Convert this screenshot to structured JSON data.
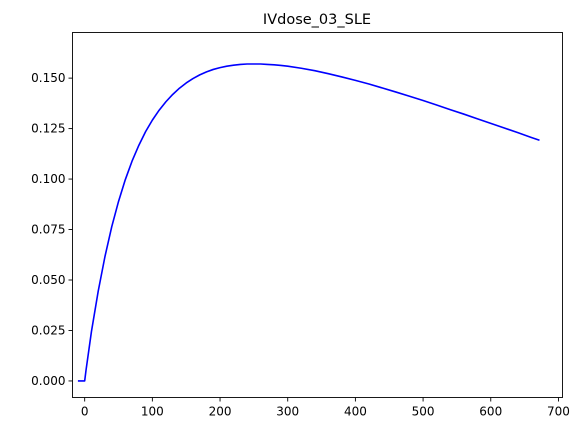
{
  "chart_data": {
    "type": "line",
    "title": "IVdose_03_SLE",
    "xlabel": "",
    "ylabel": "",
    "xlim": [
      -18,
      706
    ],
    "ylim": [
      -0.0082,
      0.1726
    ],
    "xticks": [
      0,
      100,
      200,
      300,
      400,
      500,
      600,
      700
    ],
    "xtick_labels": [
      "0",
      "100",
      "200",
      "300",
      "400",
      "500",
      "600",
      "700"
    ],
    "yticks": [
      0.0,
      0.025,
      0.05,
      0.075,
      0.1,
      0.125,
      0.15
    ],
    "ytick_labels": [
      "0.000",
      "0.025",
      "0.050",
      "0.075",
      "0.100",
      "0.125",
      "0.150"
    ],
    "grid": false,
    "series": [
      {
        "color": "#0000ff",
        "x": [
          -10,
          0,
          2,
          10,
          20,
          30,
          40,
          50,
          60,
          70,
          80,
          90,
          100,
          110,
          120,
          130,
          140,
          150,
          160,
          170,
          180,
          190,
          200,
          210,
          220,
          230,
          240,
          250,
          260,
          270,
          280,
          290,
          300,
          320,
          340,
          360,
          380,
          400,
          420,
          440,
          460,
          480,
          500,
          520,
          540,
          560,
          580,
          600,
          620,
          640,
          660,
          672
        ],
        "y": [
          0.0,
          0.0,
          0.0054,
          0.0245,
          0.0445,
          0.0617,
          0.0764,
          0.0889,
          0.0997,
          0.1089,
          0.1167,
          0.1235,
          0.1292,
          0.1341,
          0.1383,
          0.1419,
          0.145,
          0.1476,
          0.1498,
          0.1516,
          0.1531,
          0.1543,
          0.1552,
          0.1559,
          0.1564,
          0.1568,
          0.157,
          0.157,
          0.157,
          0.1568,
          0.1566,
          0.1563,
          0.1559,
          0.1549,
          0.1537,
          0.1522,
          0.1506,
          0.1489,
          0.1471,
          0.1451,
          0.1431,
          0.141,
          0.1389,
          0.1367,
          0.1344,
          0.1322,
          0.1299,
          0.1276,
          0.1253,
          0.123,
          0.1206,
          0.1192
        ]
      }
    ]
  }
}
